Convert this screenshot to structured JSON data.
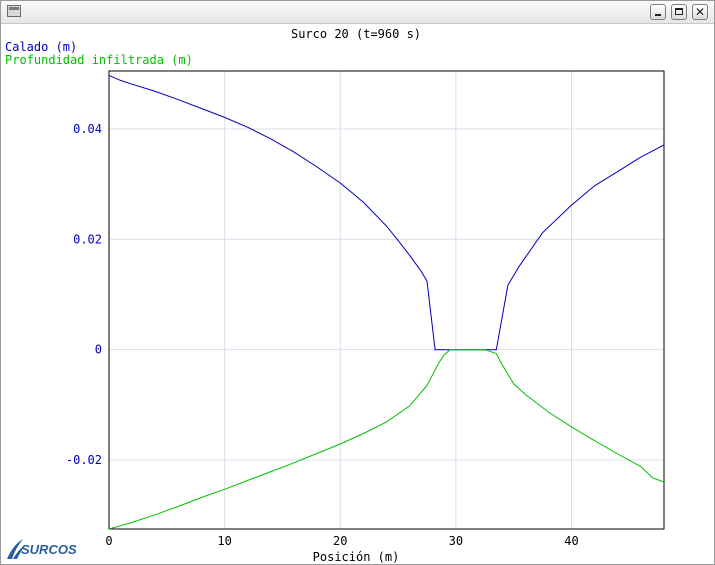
{
  "window": {
    "icon": "app-window-icon",
    "controls": [
      "minimize-icon",
      "maximize-icon",
      "close-icon"
    ]
  },
  "logo": {
    "text": "SURCOS",
    "color": "#2a5d9f"
  },
  "chart_data": {
    "type": "line",
    "title": "Surco 20 (t=960 s)",
    "xlabel": "Posición (m)",
    "xlim": [
      0,
      48
    ],
    "ylim": [
      -0.0325,
      0.0505
    ],
    "xticks": [
      0,
      10,
      20,
      30,
      40
    ],
    "xtick_labels": [
      "0",
      "10",
      "20",
      "30",
      "40"
    ],
    "yticks": [
      -0.02,
      0,
      0.02,
      0.04
    ],
    "ytick_labels": [
      "-0.02",
      "0",
      "0.02",
      "0.04"
    ],
    "grid": true,
    "legend": "top-left",
    "series": [
      {
        "name": "Calado (m)",
        "color": "#0000c0",
        "x": [
          0,
          1,
          2,
          4,
          6,
          8,
          10,
          12,
          14,
          16,
          18,
          20,
          22,
          24,
          25,
          26,
          27,
          27.5,
          28.2,
          28.5,
          29,
          33.5,
          34.5,
          35.5,
          37.5,
          40,
          42,
          44,
          46,
          48
        ],
        "y": [
          0.0497,
          0.0488,
          0.0481,
          0.0468,
          0.0453,
          0.0437,
          0.0421,
          0.0403,
          0.0382,
          0.0358,
          0.0331,
          0.0302,
          0.0267,
          0.0224,
          0.0198,
          0.0171,
          0.0142,
          0.0124,
          0.0,
          0.0,
          0.0,
          0.0,
          0.0117,
          0.0152,
          0.0212,
          0.0262,
          0.0297,
          0.0323,
          0.0349,
          0.0371
        ]
      },
      {
        "name": "Profundidad infiltrada (m)",
        "color": "#00c000",
        "x": [
          0,
          1,
          2,
          4,
          6,
          8,
          10,
          12,
          14,
          16,
          18,
          20,
          22,
          24,
          26,
          27.5,
          28.5,
          29,
          29.5,
          32.5,
          33.5,
          34,
          35,
          36,
          38,
          40,
          42,
          44,
          46,
          47,
          48
        ],
        "y": [
          -0.0325,
          -0.0319,
          -0.0313,
          -0.0299,
          -0.0284,
          -0.0268,
          -0.0253,
          -0.0237,
          -0.0221,
          -0.0205,
          -0.0188,
          -0.0171,
          -0.0152,
          -0.0131,
          -0.0102,
          -0.0065,
          -0.0025,
          -0.0009,
          0.0,
          0.0,
          -0.0007,
          -0.0027,
          -0.0062,
          -0.0081,
          -0.0113,
          -0.014,
          -0.0165,
          -0.0189,
          -0.0212,
          -0.0232,
          -0.024
        ]
      }
    ]
  }
}
